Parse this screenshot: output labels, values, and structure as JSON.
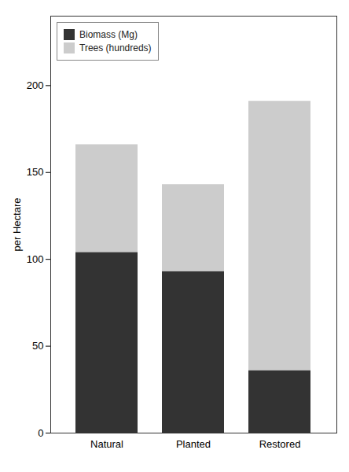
{
  "chart_data": {
    "type": "bar",
    "stacked": true,
    "categories": [
      "Natural",
      "Planted",
      "Restored"
    ],
    "series": [
      {
        "name": "Biomass (Mg)",
        "color": "#333333",
        "values": [
          104,
          93,
          36
        ]
      },
      {
        "name": "Trees (hundreds)",
        "color": "#cccccc",
        "values": [
          62,
          50,
          155
        ]
      }
    ],
    "ylabel": "per Hectare",
    "ylim": [
      0,
      240
    ],
    "yticks": [
      0,
      50,
      100,
      150,
      200
    ],
    "grid": false,
    "legend": "upper left"
  }
}
